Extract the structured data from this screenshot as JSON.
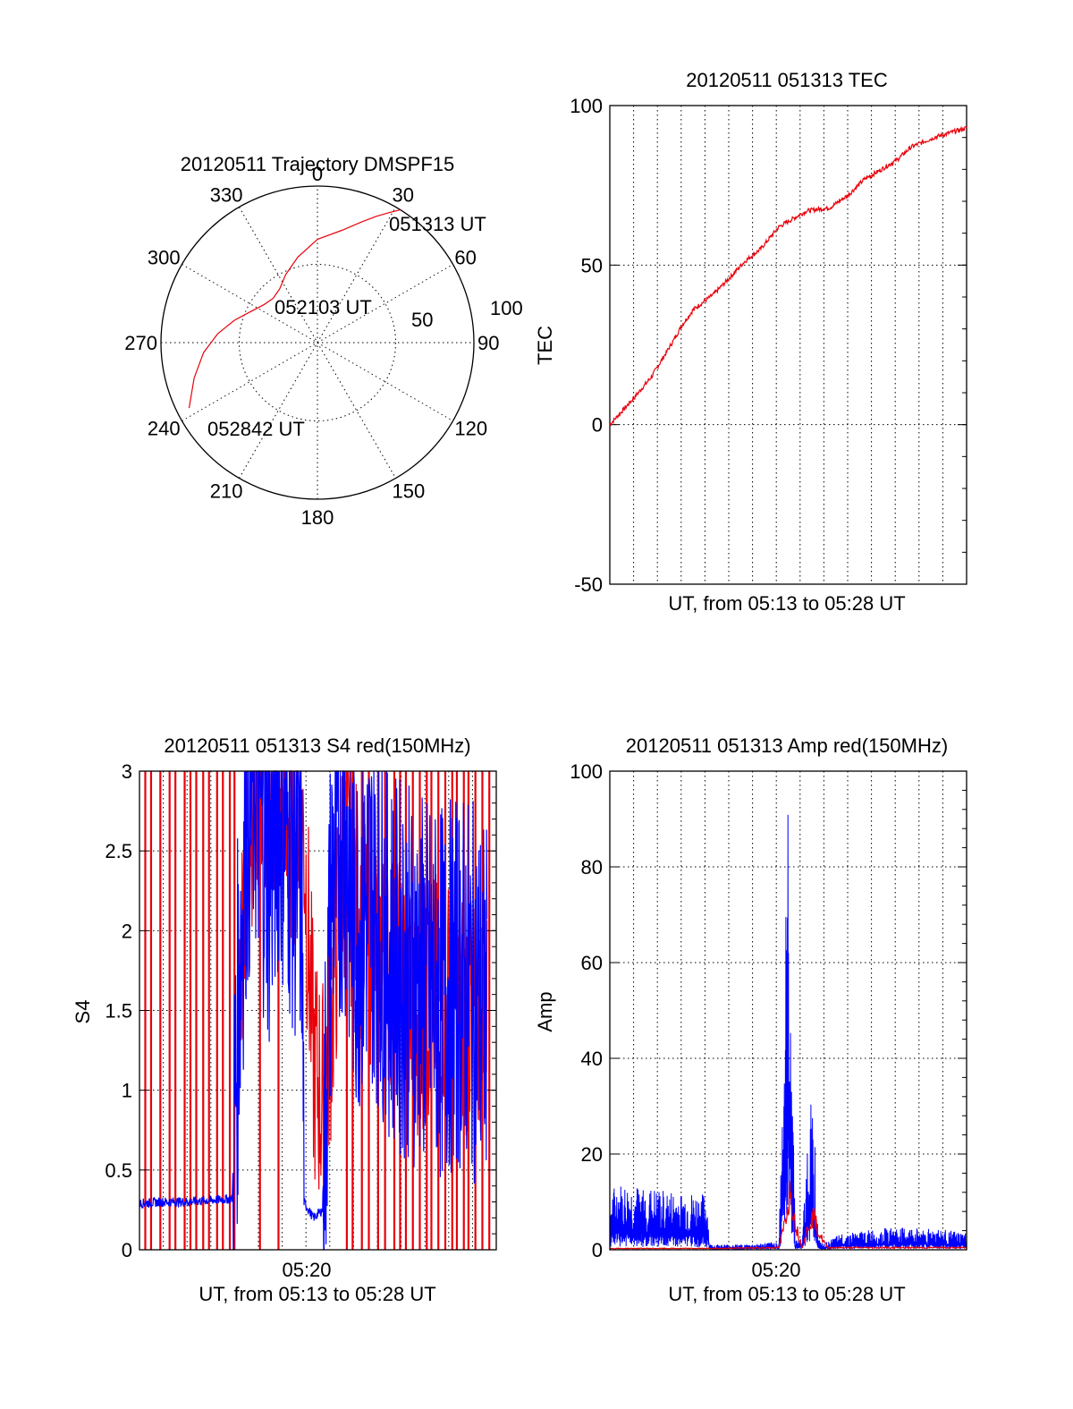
{
  "chart_data": [
    {
      "type": "polar",
      "title": "20120511 Trajectory DMSPF15",
      "angle_labels": [
        "0",
        "30",
        "60",
        "90",
        "120",
        "150",
        "180",
        "210",
        "240",
        "270",
        "300",
        "330"
      ],
      "radius_labels": [
        "50",
        "100"
      ],
      "rlim": [
        0,
        100
      ],
      "grid": true,
      "series": [
        {
          "color": "#e8000b",
          "azimuth": [
            32,
            29,
            25,
            20,
            13,
            0,
            -13,
            -25,
            -35,
            -45,
            -55,
            -65,
            -75,
            -85,
            -95,
            -106,
            -117
          ],
          "zenith": [
            100,
            95,
            89,
            82,
            74,
            66,
            56,
            48,
            42,
            40,
            42,
            47,
            55,
            64,
            73,
            82,
            92
          ]
        }
      ],
      "annotations": [
        "051313 UT",
        "052103 UT",
        "052842 UT"
      ]
    },
    {
      "type": "line",
      "title": "20120511 051313 TEC",
      "xlabel": "UT, from 05:13 to 05:28 UT",
      "ylabel": "TEC",
      "ylim": [
        -50,
        100
      ],
      "yticks": [
        "100",
        "50",
        "0",
        "-50"
      ],
      "xlim_minutes": [
        0,
        15.4
      ],
      "grid": true,
      "series": [
        {
          "color": "#e8000b",
          "x": [
            0,
            1,
            1.8,
            2.8,
            3.1,
            3.6,
            4.5,
            5.3,
            5.8,
            6.5,
            7.3,
            8.5,
            9.5,
            10.3,
            11,
            11.5,
            12.4,
            13,
            14,
            15.4
          ],
          "y": [
            0,
            8,
            15,
            27,
            31,
            36,
            41,
            47,
            51,
            55,
            62,
            67,
            68,
            72,
            77,
            79,
            83,
            87,
            90,
            93
          ]
        }
      ]
    },
    {
      "type": "line",
      "title": "20120511 051313 S4 red(150MHz)",
      "xlabel": "UT, from 05:13 to 05:28 UT",
      "ylabel": "S4",
      "ylim": [
        0,
        3
      ],
      "yticks": [
        "3",
        "2.5",
        "2",
        "1.5",
        "1",
        "0.5",
        "0"
      ],
      "xticks": [
        "05:20"
      ],
      "grid": true,
      "series": [
        {
          "color": "#e8000b",
          "spikes_x_px": [],
          "x": [
            4.3,
            4.6,
            5,
            6,
            7.1,
            7.5,
            7.9,
            8.3,
            8.8,
            9.3,
            10,
            11,
            12,
            13,
            14,
            15
          ],
          "y": [
            1.6,
            2.5,
            3,
            2.8,
            2.6,
            1.2,
            0.9,
            1.5,
            2.5,
            2.2,
            1.9,
            1.7,
            1.5,
            1.6,
            1.5,
            1.4
          ]
        },
        {
          "color": "#0000ff",
          "x": [
            0,
            1,
            2,
            3,
            4,
            4.3,
            4.6,
            5,
            5.6,
            6,
            7,
            7.1,
            7.5,
            7.9,
            8.3,
            8.8,
            9.3,
            10,
            11,
            12,
            13,
            14,
            15
          ],
          "y": [
            0.29,
            0.3,
            0.3,
            0.31,
            0.32,
            1.7,
            2.7,
            3,
            2.4,
            2.9,
            2.3,
            0.3,
            0.2,
            0.25,
            2.3,
            2.7,
            2.0,
            2.2,
            1.8,
            1.7,
            1.6,
            1.7,
            1.5
          ]
        }
      ]
    },
    {
      "type": "line",
      "title": "20120511 051313 Amp red(150MHz)",
      "xlabel": "UT, from 05:13 to 05:28 UT",
      "ylabel": "Amp",
      "ylim": [
        0,
        100
      ],
      "yticks": [
        "100",
        "80",
        "60",
        "40",
        "20",
        "0"
      ],
      "xticks": [
        "05:20"
      ],
      "grid": true,
      "series": [
        {
          "color": "#e8000b",
          "x": [
            0,
            4.2,
            7.3,
            7.5,
            7.8,
            8.0,
            8.3,
            8.6,
            8.8,
            9.0,
            9.4,
            15.4
          ],
          "y": [
            0.3,
            0.3,
            0.5,
            5,
            14,
            6,
            0.5,
            6,
            8,
            4,
            0.5,
            0.5
          ]
        },
        {
          "color": "#0000ff",
          "x": [
            0,
            0.3,
            2,
            4.2,
            4.3,
            6,
            7.3,
            7.5,
            7.7,
            7.9,
            8.0,
            8.3,
            8.6,
            8.8,
            8.9,
            9.0,
            9.2,
            10,
            12,
            14,
            15.4
          ],
          "y": [
            10,
            12,
            11,
            10,
            1,
            1,
            1.5,
            40,
            83,
            35,
            2,
            2,
            26,
            30,
            12,
            2,
            1,
            3,
            4,
            4,
            3
          ]
        }
      ]
    }
  ]
}
